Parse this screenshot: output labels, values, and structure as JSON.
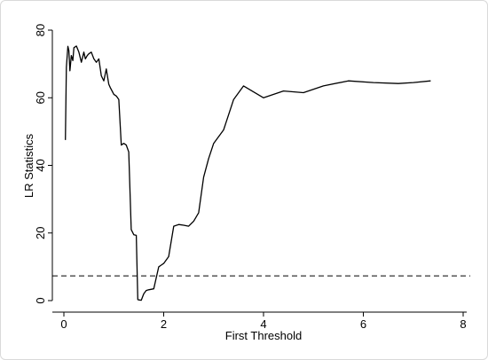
{
  "chart_data": {
    "type": "line",
    "xlabel": "First Threshold",
    "ylabel": "LR Statistics",
    "xlim": [
      0,
      8
    ],
    "ylim": [
      0,
      80
    ],
    "x_ticks": [
      "0",
      "2",
      "4",
      "6",
      "8"
    ],
    "y_ticks": [
      "0",
      "20",
      "40",
      "60",
      "80"
    ],
    "grid": false,
    "legend": "none",
    "colors": {
      "line": "#000000",
      "reference": "#000000",
      "axes": "#000000"
    },
    "reference_line": {
      "y": 7.3,
      "style": "dashed"
    },
    "series": [
      {
        "x": [
          0.03,
          0.05,
          0.08,
          0.1,
          0.12,
          0.15,
          0.18,
          0.2,
          0.25,
          0.3,
          0.35,
          0.4,
          0.43,
          0.47,
          0.5,
          0.55,
          0.6,
          0.65,
          0.7,
          0.75,
          0.8,
          0.85,
          0.9,
          0.93,
          1.0,
          1.05,
          1.1,
          1.15,
          1.2,
          1.25,
          1.3,
          1.35,
          1.4,
          1.45,
          1.48,
          1.5,
          1.55,
          1.6,
          1.65,
          1.7,
          1.8,
          1.9,
          1.95,
          2.0,
          2.1,
          2.2,
          2.3,
          2.4,
          2.5,
          2.6,
          2.7,
          2.8,
          2.9,
          3.0,
          3.2,
          3.4,
          3.6,
          4.0,
          4.4,
          4.8,
          5.2,
          5.7,
          6.2,
          6.7,
          7.0,
          7.35
        ],
        "y": [
          47.5,
          69.0,
          75.2,
          74.0,
          68.0,
          72.5,
          71.0,
          74.8,
          75.3,
          73.5,
          70.5,
          73.5,
          71.5,
          72.5,
          73.0,
          73.5,
          71.5,
          70.5,
          71.5,
          66.5,
          65.0,
          68.5,
          64.0,
          63.0,
          61.0,
          60.5,
          59.5,
          46.0,
          46.5,
          46.0,
          44.0,
          21.0,
          19.5,
          19.3,
          0.3,
          0.2,
          0.1,
          2.0,
          3.0,
          3.2,
          3.5,
          10.0,
          10.5,
          11.0,
          13.0,
          22.0,
          22.5,
          22.3,
          22.0,
          23.5,
          26.0,
          36.5,
          42.0,
          46.5,
          50.5,
          59.5,
          63.5,
          60.0,
          62.0,
          61.5,
          63.5,
          65.0,
          64.5,
          64.2,
          64.5,
          65.0
        ]
      }
    ]
  }
}
